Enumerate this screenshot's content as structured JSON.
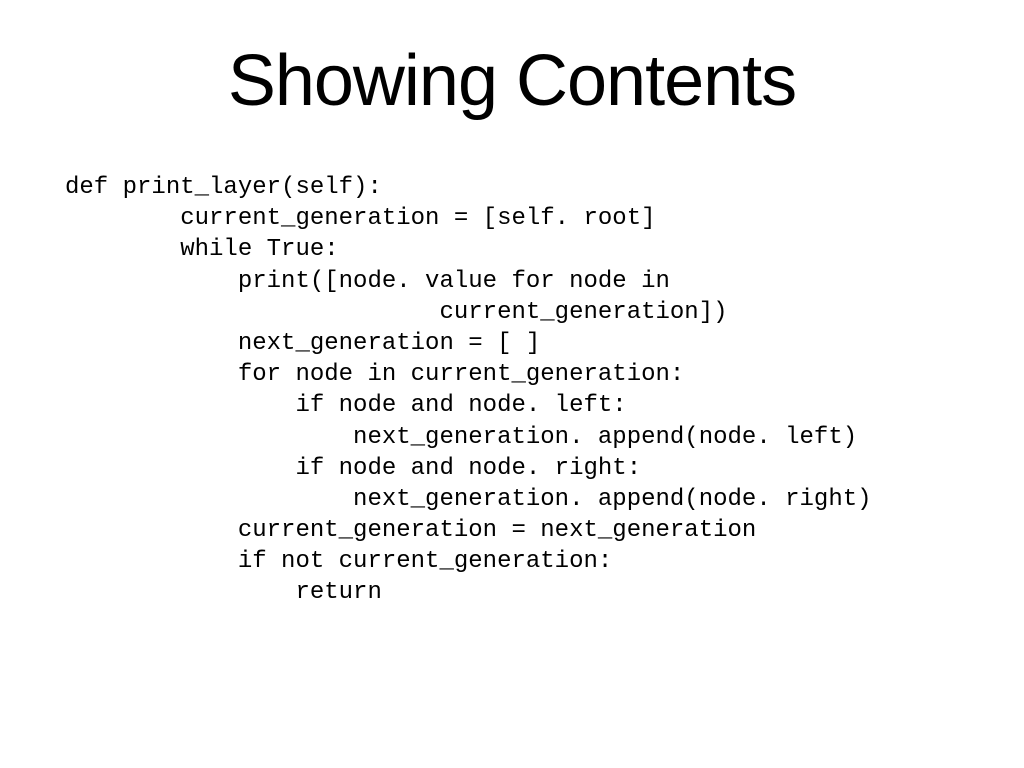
{
  "slide": {
    "title": "Showing Contents",
    "title_fontsize": 72,
    "title_color": "#000000",
    "background_color": "#ffffff",
    "code": {
      "font_family": "Courier New",
      "fontsize": 24,
      "color": "#000000",
      "lines": [
        "def print_layer(self):",
        "        current_generation = [self. root]",
        "        while True:",
        "            print([node. value for node in",
        "                          current_generation])",
        "            next_generation = [ ]",
        "            for node in current_generation:",
        "                if node and node. left:",
        "                    next_generation. append(node. left)",
        "                if node and node. right:",
        "                    next_generation. append(node. right)",
        "            current_generation = next_generation",
        "            if not current_generation:",
        "                return"
      ]
    }
  }
}
